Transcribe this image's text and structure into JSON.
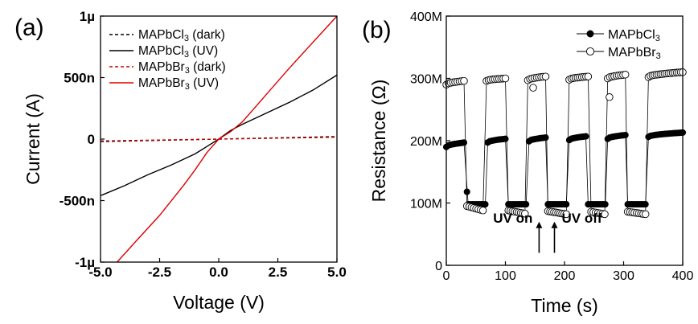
{
  "chart_data": [
    {
      "panel": "(a)",
      "type": "line",
      "xlabel": "Voltage (V)",
      "ylabel": "Current  (A)",
      "xlim": [
        -5.0,
        5.0
      ],
      "ylim": [
        -1.0,
        1.0
      ],
      "y_units": "µA",
      "x_ticks": [
        -5.0,
        -2.5,
        0.0,
        2.5,
        5.0
      ],
      "x_tick_labels": [
        "-5.0",
        "-2.5",
        "0.0",
        "2.5",
        "5.0"
      ],
      "y_ticks": [
        -1.0,
        -0.5,
        0.0,
        0.5,
        1.0
      ],
      "y_tick_labels": [
        "-1µ",
        "-500n",
        "0",
        "500n",
        "1µ"
      ],
      "legend_position": "top-left",
      "series": [
        {
          "name": "MAPbCl3 (dark)",
          "legend_label": "MAPbCl",
          "legend_sub": "3",
          "legend_suffix": " (dark)",
          "color": "#000000",
          "dash": "dashed",
          "x": [
            -5.0,
            0.0,
            5.0
          ],
          "y": [
            -0.02,
            0.0,
            0.02
          ]
        },
        {
          "name": "MAPbCl3 (UV)",
          "legend_label": "MAPbCl",
          "legend_sub": "3",
          "legend_suffix": " (UV)",
          "color": "#000000",
          "dash": "solid",
          "x": [
            -5.0,
            -4.0,
            -3.0,
            -2.0,
            -1.0,
            -0.5,
            0.0,
            0.5,
            1.0,
            2.0,
            3.0,
            4.0,
            5.0
          ],
          "y": [
            -0.46,
            -0.38,
            -0.29,
            -0.21,
            -0.12,
            -0.06,
            0.0,
            0.07,
            0.12,
            0.21,
            0.3,
            0.4,
            0.52
          ]
        },
        {
          "name": "MAPbBr3 (dark)",
          "legend_label": "MAPbBr",
          "legend_sub": "3",
          "legend_suffix": " (dark)",
          "color": "#cc0000",
          "dash": "dashed",
          "x": [
            -5.0,
            0.0,
            5.0
          ],
          "y": [
            -0.015,
            0.0,
            0.015
          ]
        },
        {
          "name": "MAPbBr3 (UV)",
          "legend_label": "MAPbBr",
          "legend_sub": "3",
          "legend_suffix": " (UV)",
          "color": "#dd0000",
          "dash": "solid",
          "x": [
            -4.3,
            -3.5,
            -2.5,
            -1.5,
            -1.0,
            -0.5,
            0.0,
            0.5,
            1.0,
            1.5,
            2.0,
            2.5,
            3.0,
            4.0,
            5.0
          ],
          "y": [
            -1.0,
            -0.83,
            -0.62,
            -0.38,
            -0.25,
            -0.11,
            0.0,
            0.06,
            0.14,
            0.25,
            0.36,
            0.47,
            0.58,
            0.79,
            1.0
          ]
        }
      ]
    },
    {
      "panel": "(b)",
      "type": "scatter",
      "xlabel": "Time (s)",
      "ylabel": "Resistance (Ω)",
      "xlim": [
        0,
        400
      ],
      "ylim": [
        0,
        400
      ],
      "y_units": "MΩ",
      "x_ticks": [
        0,
        100,
        200,
        300,
        400
      ],
      "x_tick_labels": [
        "0",
        "100",
        "200",
        "300",
        "400"
      ],
      "y_ticks": [
        0,
        100,
        200,
        300,
        400
      ],
      "y_tick_labels": [
        "0",
        "100M",
        "200M",
        "300M",
        "400M"
      ],
      "legend_position": "top-right",
      "annotations": [
        {
          "text": "UV on",
          "arrow_x": 157,
          "arrow_from_y": 20,
          "arrow_to_y": 70
        },
        {
          "text": "UV off",
          "arrow_x": 183,
          "arrow_from_y": 20,
          "arrow_to_y": 70
        }
      ],
      "series": [
        {
          "name": "MAPbCl3",
          "legend_label": "MAPbCl",
          "legend_sub": "3",
          "marker": "filled-circle",
          "color": "#000000",
          "segments": [
            {
              "high_t": [
                0,
                30
              ],
              "high_r": [
                190,
                197
              ],
              "low_t": [
                37,
                66
              ],
              "low_r": [
                98,
                98
              ]
            },
            {
              "high_t": [
                70,
                100
              ],
              "high_r": [
                197,
                203
              ],
              "low_t": [
                105,
                135
              ],
              "low_r": [
                98,
                98
              ]
            },
            {
              "high_t": [
                140,
                168
              ],
              "high_r": [
                199,
                205
              ],
              "low_t": [
                172,
                203
              ],
              "low_r": [
                98,
                98
              ]
            },
            {
              "high_t": [
                208,
                236
              ],
              "high_r": [
                201,
                207
              ],
              "low_t": [
                240,
                269
              ],
              "low_r": [
                98,
                98
              ]
            },
            {
              "high_t": [
                273,
                303
              ],
              "high_r": [
                203,
                209
              ],
              "low_t": [
                307,
                337
              ],
              "low_r": [
                98,
                98
              ]
            },
            {
              "high_t": [
                342,
                400
              ],
              "high_r": [
                206,
                213
              ],
              "low_t": [],
              "low_r": []
            }
          ],
          "outliers": [
            {
              "t": 35,
              "r": 118
            }
          ]
        },
        {
          "name": "MAPbBr3",
          "legend_label": "MAPbBr",
          "legend_sub": "3",
          "marker": "open-circle",
          "color": "#000000",
          "segments": [
            {
              "high_t": [
                0,
                30
              ],
              "high_r": [
                290,
                296
              ],
              "low_t": [
                35,
                62
              ],
              "low_r": [
                95,
                88
              ]
            },
            {
              "high_t": [
                68,
                100
              ],
              "high_r": [
                296,
                300
              ],
              "low_t": [
                105,
                133
              ],
              "low_r": [
                88,
                83
              ]
            },
            {
              "high_t": [
                138,
                168
              ],
              "high_r": [
                297,
                303
              ],
              "low_t": [
                172,
                203
              ],
              "low_r": [
                87,
                82
              ]
            },
            {
              "high_t": [
                208,
                240
              ],
              "high_r": [
                298,
                303
              ],
              "low_t": [
                245,
                268
              ],
              "low_r": [
                86,
                82
              ]
            },
            {
              "high_t": [
                273,
                303
              ],
              "high_r": [
                300,
                306
              ],
              "low_t": [
                307,
                337
              ],
              "low_r": [
                86,
                82
              ]
            },
            {
              "high_t": [
                342,
                400
              ],
              "high_r": [
                302,
                310
              ],
              "low_t": [],
              "low_r": []
            }
          ],
          "outliers": [
            {
              "t": 147,
              "r": 285
            },
            {
              "t": 276,
              "r": 270
            }
          ]
        }
      ]
    }
  ]
}
